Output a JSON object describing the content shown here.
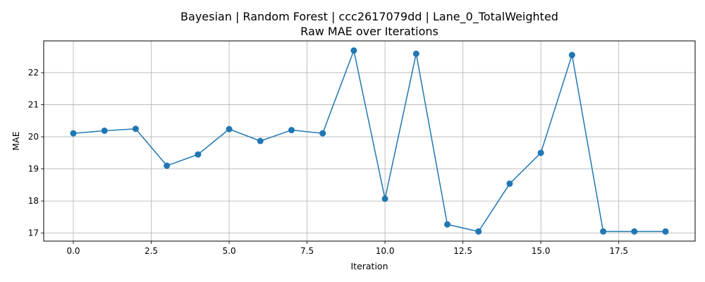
{
  "chart_data": {
    "type": "line",
    "title_line1": "Bayesian | Random Forest | ccc2617079dd | Lane_0_TotalWeighted",
    "title_line2": "Raw MAE over Iterations",
    "xlabel": "Iteration",
    "ylabel": "MAE",
    "xlim": [
      -0.95,
      19.95
    ],
    "ylim": [
      16.75,
      22.99
    ],
    "x_ticks": [
      0.0,
      2.5,
      5.0,
      7.5,
      10.0,
      12.5,
      15.0,
      17.5
    ],
    "x_tick_labels": [
      "0.0",
      "2.5",
      "5.0",
      "7.5",
      "10.0",
      "12.5",
      "15.0",
      "17.5"
    ],
    "y_ticks": [
      17,
      18,
      19,
      20,
      21,
      22
    ],
    "y_tick_labels": [
      "17",
      "18",
      "19",
      "20",
      "21",
      "22"
    ],
    "grid": true,
    "line_color": "#1f77b4",
    "marker": "circle",
    "series": [
      {
        "x": [
          0,
          1,
          2,
          3,
          4,
          5,
          6,
          7,
          8,
          9,
          10,
          11,
          12,
          13,
          14,
          15,
          16,
          17,
          18,
          19
        ],
        "values": [
          20.11,
          20.19,
          20.25,
          19.1,
          19.45,
          20.24,
          19.87,
          20.21,
          20.11,
          22.69,
          18.07,
          22.59,
          17.27,
          17.05,
          18.54,
          19.5,
          22.55,
          17.05,
          17.05,
          17.05
        ]
      }
    ]
  }
}
